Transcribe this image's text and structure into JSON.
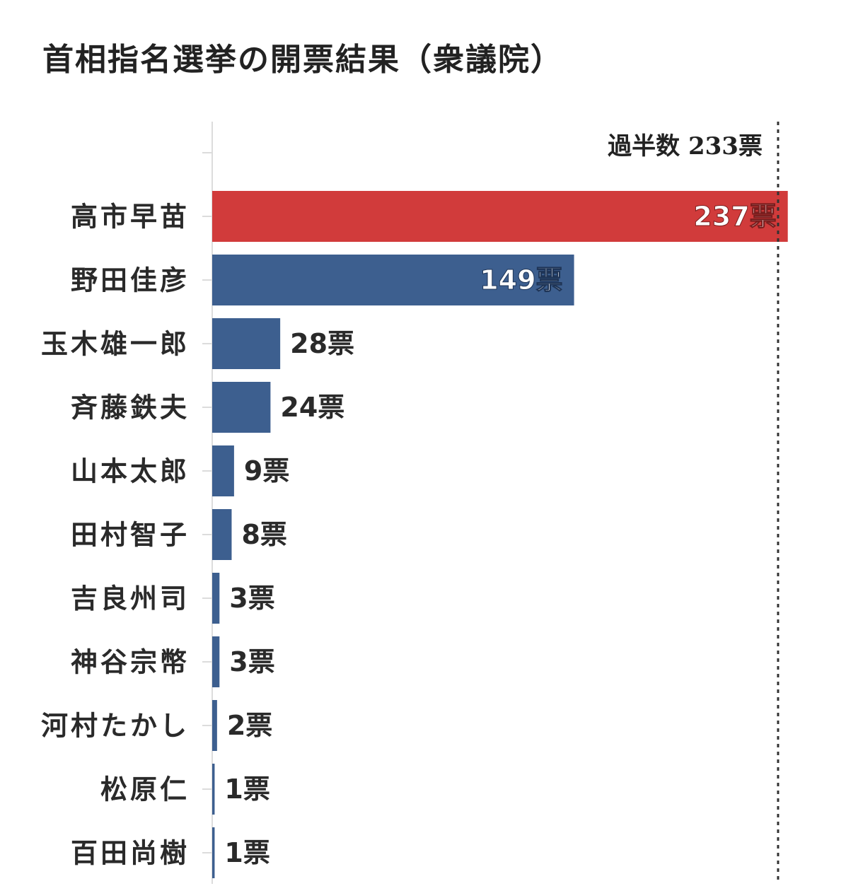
{
  "title": "首相指名選挙の開票結果（衆議院）",
  "colors": {
    "highlight": "#d13b3b",
    "bar": "#3d5f8f",
    "axis": "#dcdcdc",
    "reference_line": "#333333",
    "label_dark": "#2a2a2a",
    "label_light": "#ffffff"
  },
  "chart_data": {
    "type": "bar",
    "orientation": "horizontal",
    "title": "首相指名選挙の開票結果（衆議院）",
    "xlim": [
      0,
      240
    ],
    "grid": false,
    "unit": "票",
    "categories": [
      "高市早苗",
      "野田佳彦",
      "玉木雄一郎",
      "斉藤鉄夫",
      "山本太郎",
      "田村智子",
      "吉良州司",
      "神谷宗幣",
      "河村たかし",
      "松原仁",
      "百田尚樹"
    ],
    "values": [
      237,
      149,
      28,
      24,
      9,
      8,
      3,
      3,
      2,
      1,
      1
    ],
    "value_labels": [
      "237票",
      "149票",
      "28票",
      "24票",
      "9票",
      "8票",
      "3票",
      "3票",
      "2票",
      "1票",
      "1票"
    ],
    "highlight_index": 0,
    "reference_line": {
      "value": 233,
      "label": "過半数 233票",
      "style": "dotted"
    }
  }
}
